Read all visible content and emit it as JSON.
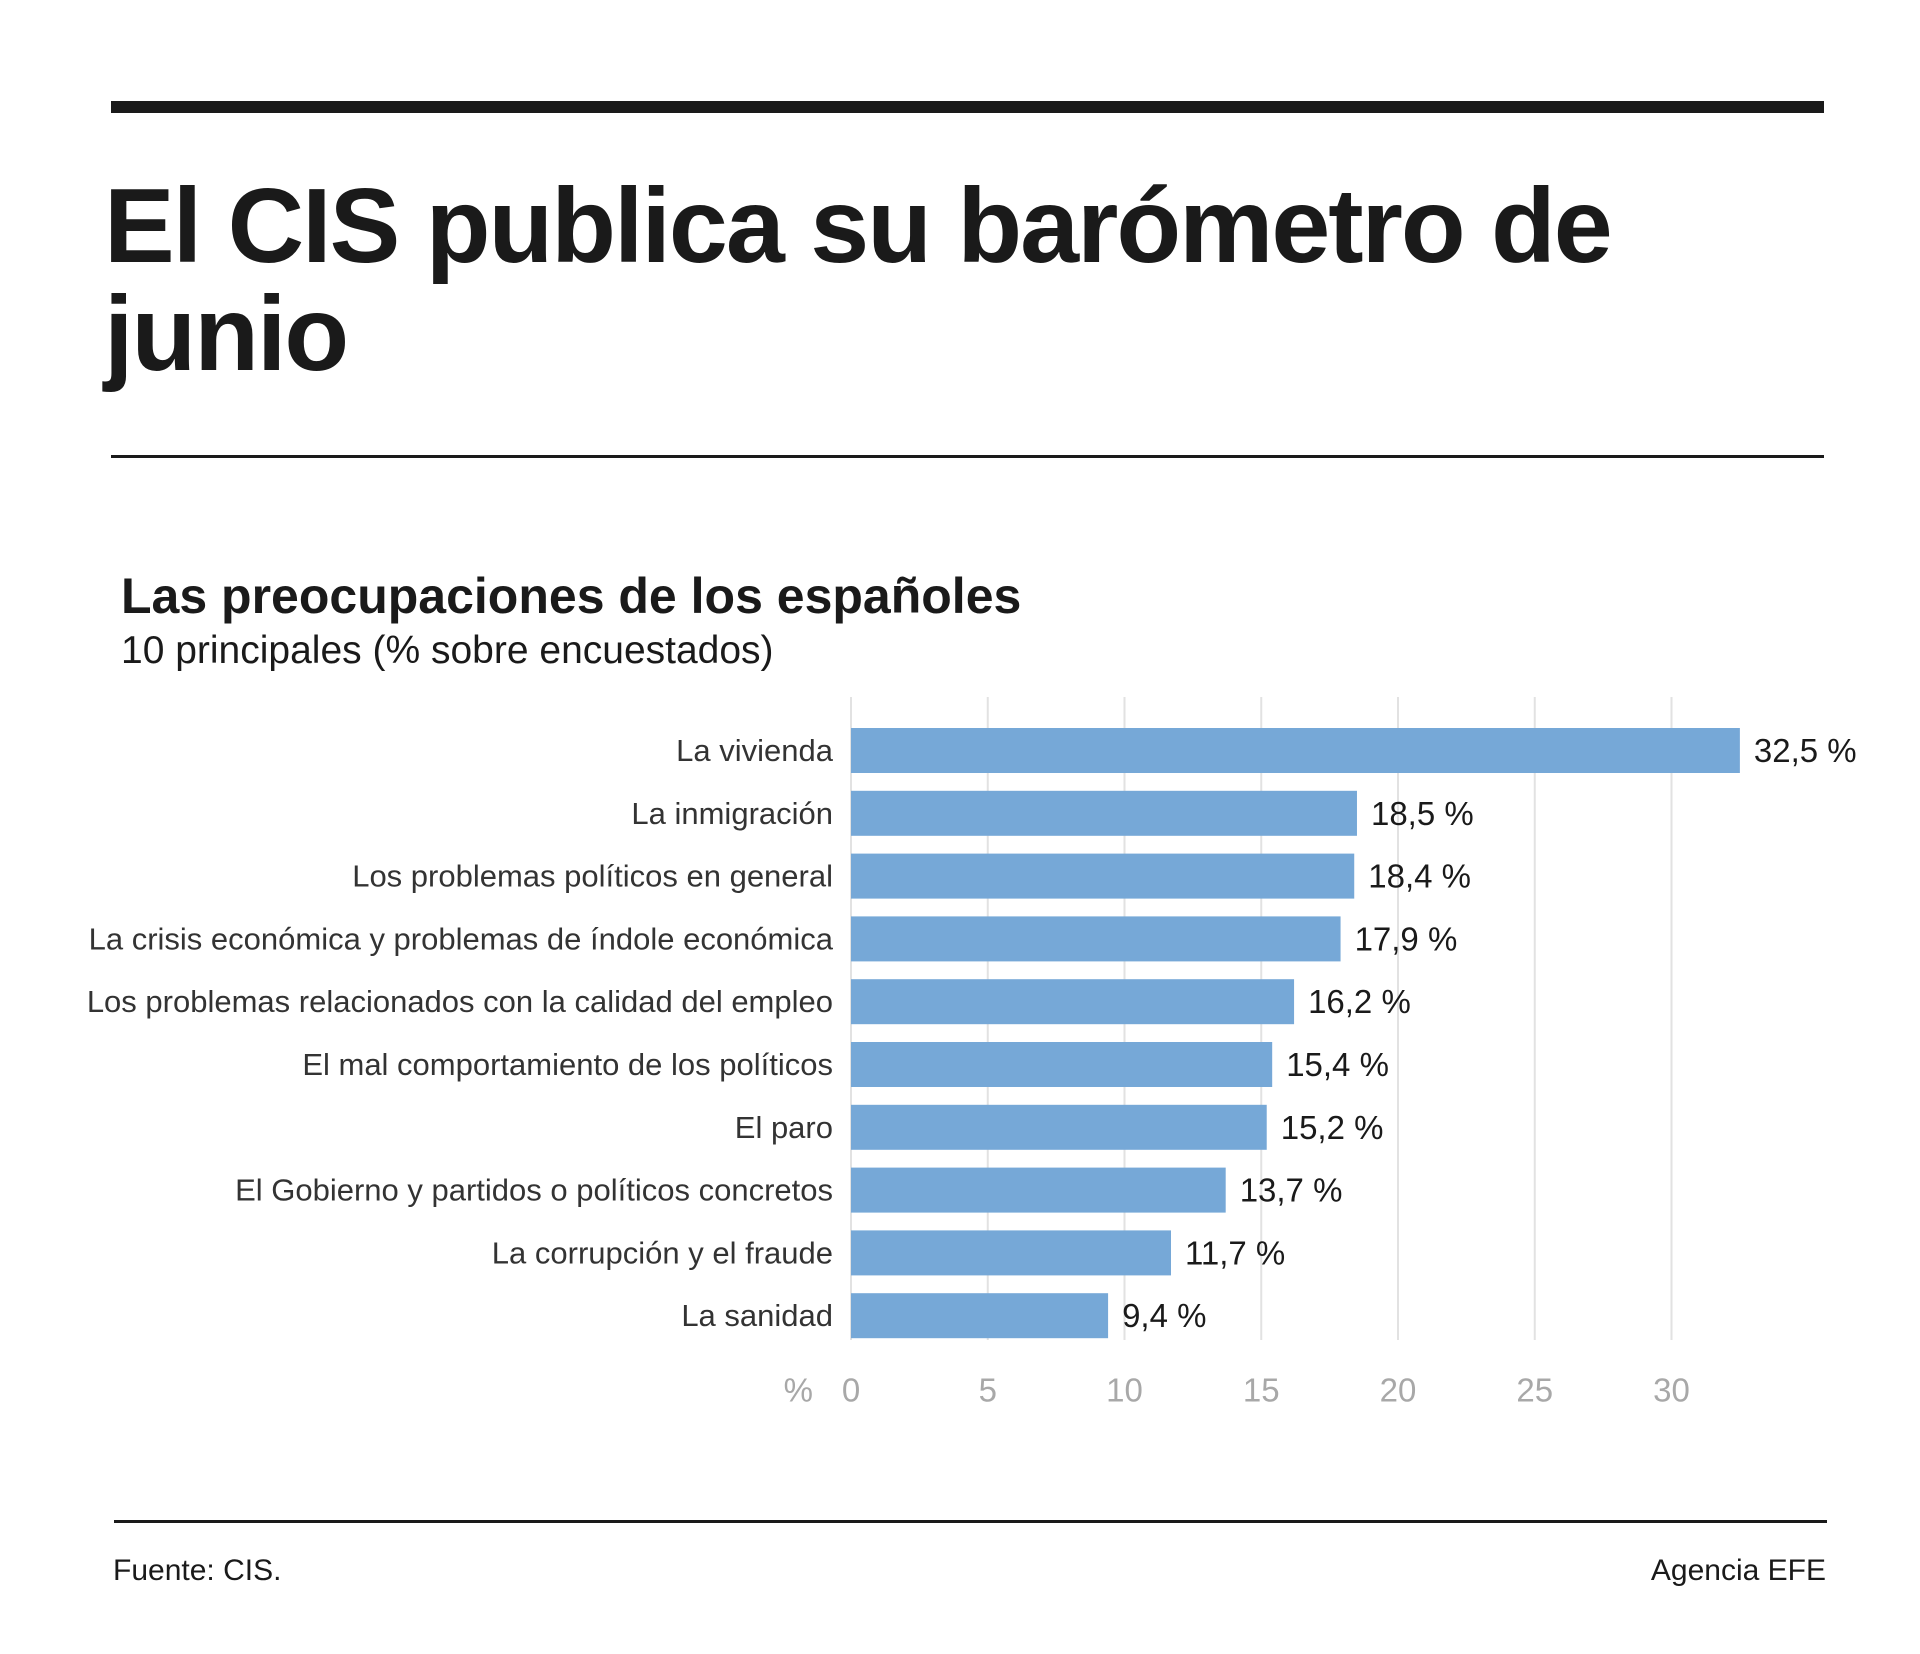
{
  "headline": "El CIS publica su barómetro de junio",
  "chart_data": {
    "type": "bar",
    "orientation": "horizontal",
    "title": "Las preocupaciones de los españoles",
    "subtitle": "10 principales (% sobre encuestados)",
    "categories": [
      "La vivienda",
      "La inmigración",
      "Los problemas políticos en general",
      "La crisis económica y problemas de índole económica",
      "Los problemas relacionados con la calidad del empleo",
      "El mal comportamiento de los políticos",
      "El paro",
      "El Gobierno y partidos o políticos concretos",
      "La corrupción y el fraude",
      "La sanidad"
    ],
    "values": [
      32.5,
      18.5,
      18.4,
      17.9,
      16.2,
      15.4,
      15.2,
      13.7,
      11.7,
      9.4
    ],
    "value_labels": [
      "32,5 %",
      "18,5 %",
      "18,4 %",
      "17,9 %",
      "16,2 %",
      "15,4 %",
      "15,2 %",
      "13,7 %",
      "11,7 %",
      "9,4 %"
    ],
    "x_unit_label": "%",
    "x_ticks": [
      0,
      5,
      10,
      15,
      20,
      25,
      30
    ],
    "xlim": [
      0,
      35
    ],
    "grid": true,
    "bar_color": "#76a8d7",
    "grid_color": "#e2e2e2",
    "tick_color": "#a8a8a8"
  },
  "footer": {
    "source": "Fuente: CIS.",
    "credit": "Agencia EFE"
  }
}
